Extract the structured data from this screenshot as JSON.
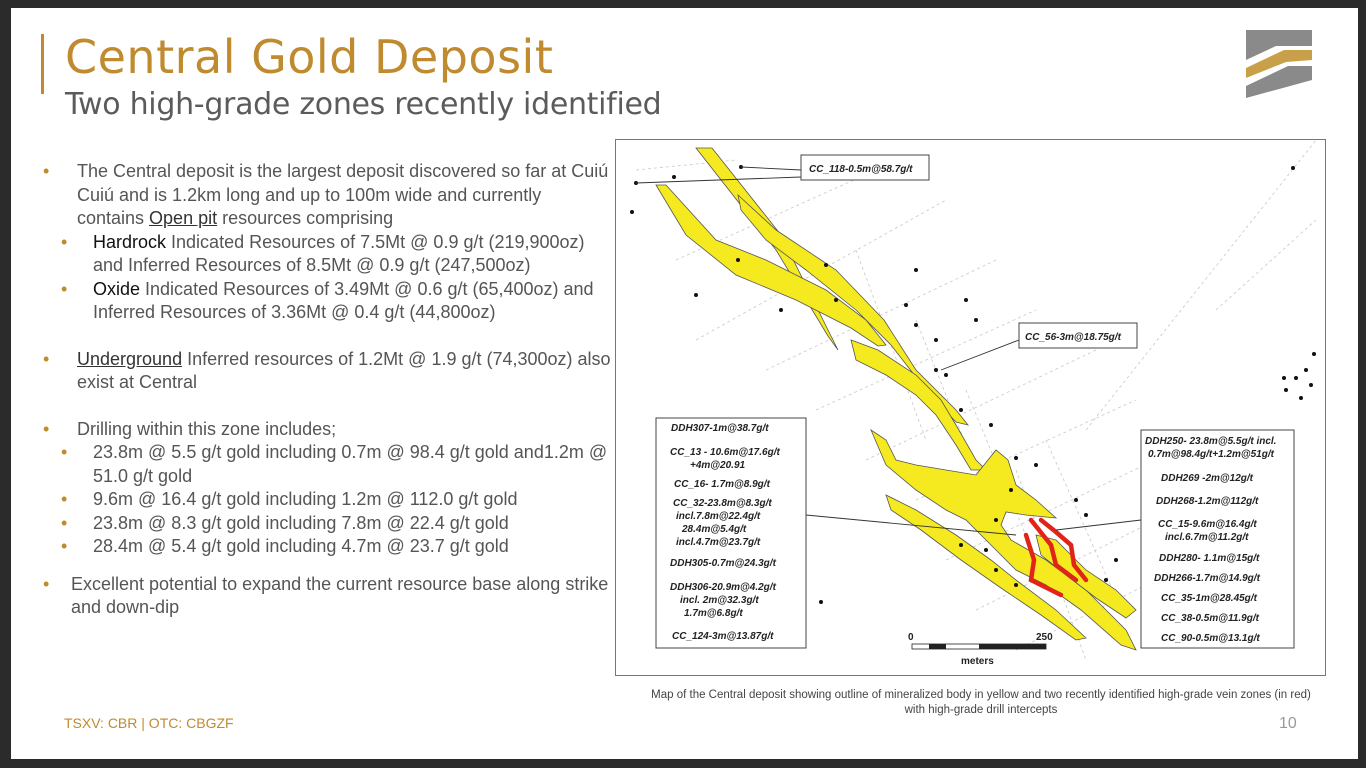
{
  "header": {
    "title": "Central Gold Deposit",
    "subtitle": "Two high-grade zones recently identified"
  },
  "logo": {
    "icon": "company-logo-icon",
    "colors": [
      "#8a8a8a",
      "#c9a04a",
      "#ffffff"
    ]
  },
  "bullets": {
    "b1_text": "The Central deposit is the largest deposit discovered so far at Cuiú Cuiú and is 1.2km long and up to 100m wide  and currently contains ",
    "b1_link": "Open pit",
    "b1_tail": " resources comprising",
    "hardrock_kw": "Hardrock",
    "hardrock_text": " Indicated Resources of 7.5Mt @ 0.9 g/t (219,900oz) and Inferred Resources of 8.5Mt @ 0.9 g/t (247,500oz)",
    "oxide_kw": "Oxide",
    "oxide_text": " Indicated Resources of 3.49Mt @ 0.6 g/t (65,400oz) and Inferred Resources of 3.36Mt @ 0.4 g/t (44,800oz)",
    "ug_kw": "Underground",
    "ug_text": " Inferred resources of 1.2Mt @ 1.9 g/t (74,300oz) also exist at Central",
    "drill_intro": "Drilling within this zone includes;",
    "drill_items": [
      "23.8m @ 5.5 g/t gold including 0.7m @ 98.4 g/t gold and1.2m @ 51.0 g/t gold",
      "9.6m @ 16.4 g/t gold including 1.2m @ 112.0 g/t gold",
      "23.8m @ 8.3 g/t gold including 7.8m @ 22.4 g/t gold",
      "28.4m @ 5.4 g/t gold including 4.7m @ 23.7 g/t gold"
    ],
    "potential": "Excellent potential to expand the current resource base along strike and down-dip"
  },
  "map": {
    "colors": {
      "mineralized": "#f5ea1f",
      "high_grade": "#e2231a"
    },
    "top_labels": [
      "CC_118-0.5m@58.7g/t",
      "CC_56-3m@18.75g/t"
    ],
    "left_box": [
      "DDH307-1m@38.7g/t",
      "CC_13 - 10.6m@17.6g/t",
      "+4m@20.91",
      "CC_16- 1.7m@8.9g/t",
      "CC_32-23.8m@8.3g/t",
      "incl.7.8m@22.4g/t",
      "28.4m@5.4g/t",
      "incl.4.7m@23.7g/t",
      "DDH305-0.7m@24.3g/t",
      "DDH306-20.9m@4.2g/t",
      "incl. 2m@32.3g/t",
      "1.7m@6.8g/t",
      "CC_124-3m@13.87g/t"
    ],
    "right_box": [
      "DDH250- 23.8m@5.5g/t incl.",
      "0.7m@98.4g/t+1.2m@51g/t",
      "DDH269 -2m@12g/t",
      "DDH268-1.2m@112g/t",
      "CC_15-9.6m@16.4g/t",
      "incl.6.7m@11.2g/t",
      "DDH280- 1.1m@15g/t",
      "DDH266-1.7m@14.9g/t",
      "CC_35-1m@28.45g/t",
      "CC_38-0.5m@11.9g/t",
      "CC_90-0.5m@13.1g/t"
    ],
    "scale": {
      "start": "0",
      "end": "250",
      "unit": "meters"
    }
  },
  "caption": "Map of the Central deposit showing outline of mineralized body in yellow and two recently identified high-grade vein zones (in red) with high-grade drill intercepts",
  "footer": {
    "ticker": "TSXV: CBR | OTC: CBGZF",
    "page": "10"
  }
}
